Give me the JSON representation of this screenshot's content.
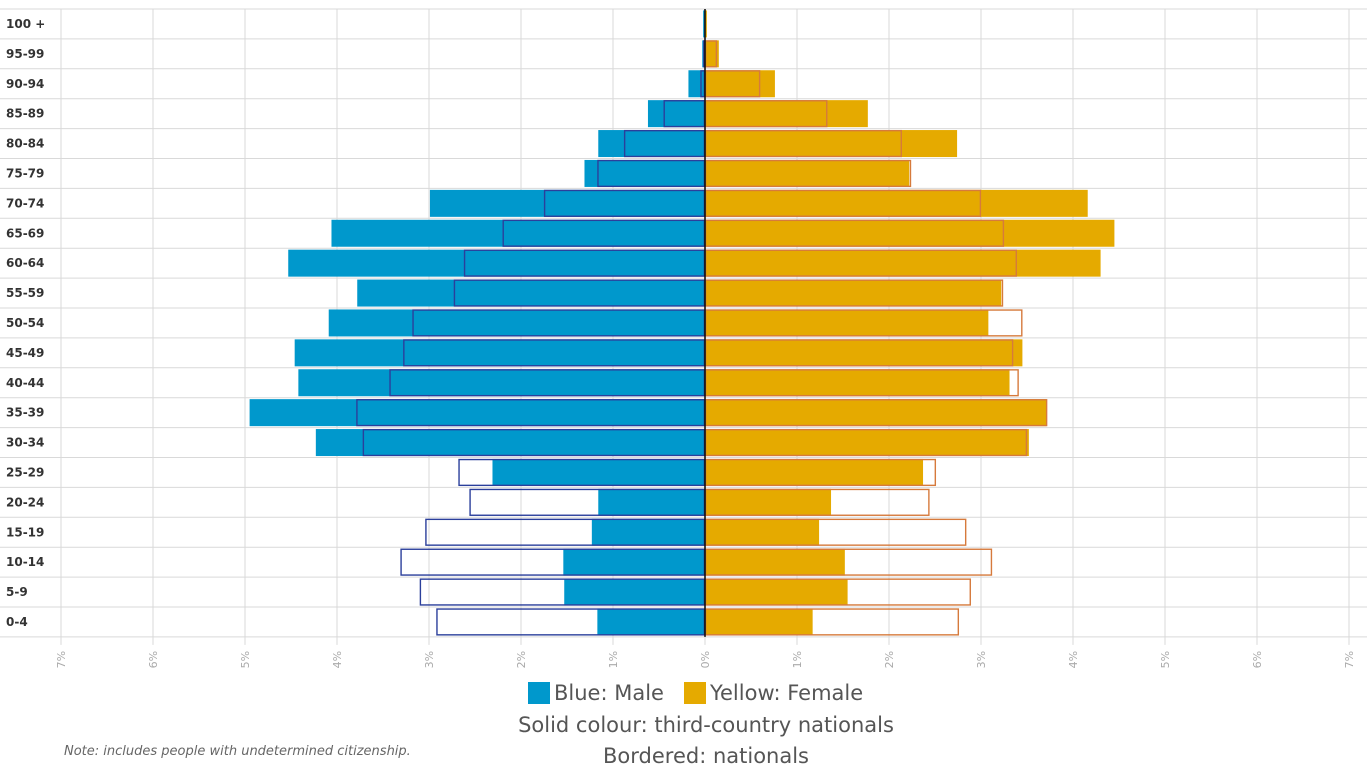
{
  "chart_data": {
    "type": "bar",
    "subtype": "population-pyramid",
    "categories": [
      "100 +",
      "95-99",
      "90-94",
      "85-89",
      "80-84",
      "75-79",
      "70-74",
      "65-69",
      "60-64",
      "55-59",
      "50-54",
      "45-49",
      "40-44",
      "35-39",
      "30-34",
      "25-29",
      "20-24",
      "15-19",
      "10-14",
      "5-9",
      "0-4"
    ],
    "xlim": [
      -7,
      7
    ],
    "x_ticks": [
      "7%",
      "6%",
      "5%",
      "4%",
      "3%",
      "2%",
      "1%",
      "0%",
      "1%",
      "2%",
      "3%",
      "4%",
      "5%",
      "6%",
      "7%"
    ],
    "grid": true,
    "series": [
      {
        "name": "Blue: Male",
        "style": "solid",
        "side": "left",
        "color": "#0098cc",
        "values": [
          0.02,
          0.03,
          0.18,
          0.62,
          1.16,
          1.31,
          2.99,
          4.06,
          4.53,
          3.78,
          4.09,
          4.46,
          4.42,
          4.95,
          4.23,
          2.31,
          1.16,
          1.23,
          1.54,
          1.53,
          1.17
        ]
      },
      {
        "name": "Blue: Male",
        "style": "bordered",
        "side": "left",
        "color": "#2b3f9b",
        "values": [
          0.01,
          0.02,
          0.05,
          0.45,
          0.88,
          1.17,
          1.75,
          2.2,
          2.62,
          2.73,
          3.18,
          3.28,
          3.43,
          3.79,
          3.72,
          2.68,
          2.56,
          3.04,
          3.31,
          3.1,
          2.92
        ]
      },
      {
        "name": "Yellow: Female",
        "style": "solid",
        "side": "right",
        "color": "#e5aa00",
        "values": [
          0.02,
          0.15,
          0.76,
          1.77,
          2.74,
          2.22,
          4.16,
          4.45,
          4.3,
          3.22,
          3.08,
          3.45,
          3.31,
          3.71,
          3.52,
          2.37,
          1.37,
          1.24,
          1.52,
          1.55,
          1.17
        ]
      },
      {
        "name": "Yellow: Female",
        "style": "bordered",
        "side": "right",
        "color": "#d67a3c",
        "values": [
          0.01,
          0.13,
          0.6,
          1.33,
          2.14,
          2.24,
          3.0,
          3.25,
          3.39,
          3.24,
          3.45,
          3.35,
          3.41,
          3.72,
          3.5,
          2.51,
          2.44,
          2.84,
          3.12,
          2.89,
          2.76
        ]
      }
    ]
  },
  "legend": {
    "male_label": "Blue: Male",
    "female_label": "Yellow: Female",
    "solid_label": "Solid colour: third-country nationals",
    "bordered_label": "Bordered: nationals",
    "male_color": "#0098cc",
    "female_color": "#e5aa00"
  },
  "note": "Note: includes people with undetermined citizenship."
}
